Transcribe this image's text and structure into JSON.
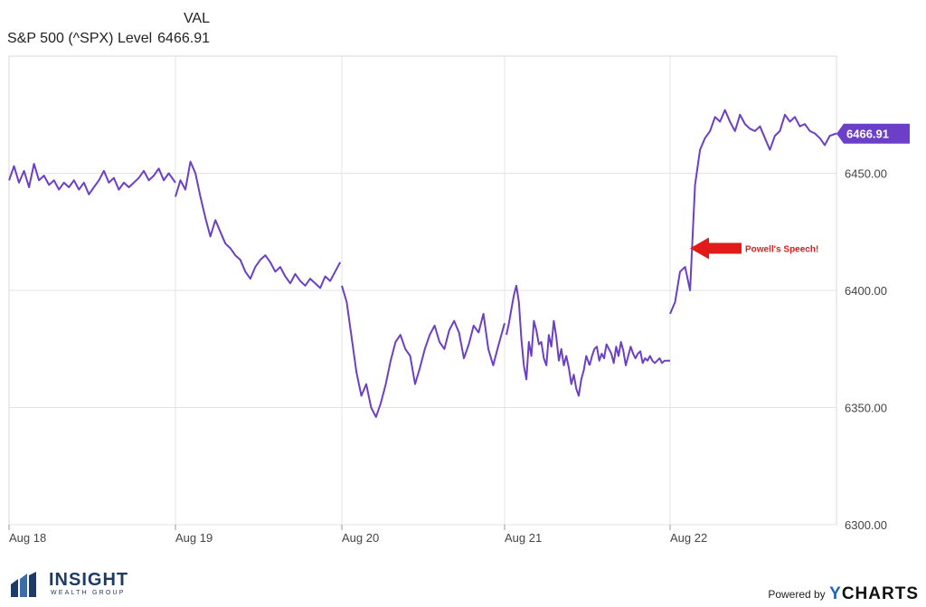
{
  "legend": {
    "header": "VAL",
    "series_name": "S&P 500 (^SPX) Level",
    "series_value": "6466.91"
  },
  "chart_data": {
    "type": "line",
    "title": "",
    "xlabel": "",
    "ylabel": "",
    "x_tick_labels": [
      "Aug 18",
      "Aug 19",
      "Aug 20",
      "Aug 21",
      "Aug 22"
    ],
    "y_ticks": [
      6300,
      6350,
      6400,
      6450
    ],
    "y_tick_labels": [
      "6300.00",
      "6350.00",
      "6400.00",
      "6450.00"
    ],
    "ylim": [
      6300,
      6500
    ],
    "grid": true,
    "series": [
      {
        "name": "S&P 500 (^SPX) Level",
        "color": "#6b3fc8",
        "last_value_label": "6466.91",
        "segments": [
          {
            "day": "Aug 18",
            "x": [
              0.0,
              0.03,
              0.06,
              0.09,
              0.12,
              0.15,
              0.18,
              0.21,
              0.24,
              0.27,
              0.3,
              0.33,
              0.36,
              0.39,
              0.42,
              0.45,
              0.48,
              0.51,
              0.54,
              0.57,
              0.6,
              0.63,
              0.66,
              0.69,
              0.72,
              0.75,
              0.78,
              0.81,
              0.84,
              0.87,
              0.9,
              0.93,
              0.96,
              1.0
            ],
            "y": [
              6447,
              6453,
              6446,
              6451,
              6444,
              6454,
              6447,
              6449,
              6445,
              6447,
              6443,
              6446,
              6444,
              6447,
              6443,
              6446,
              6441,
              6444,
              6447,
              6451,
              6446,
              6448,
              6443,
              6446,
              6444,
              6446,
              6448,
              6451,
              6447,
              6449,
              6452,
              6447,
              6450,
              6446
            ]
          },
          {
            "day": "Aug 19",
            "x": [
              0.0,
              0.03,
              0.06,
              0.09,
              0.12,
              0.15,
              0.18,
              0.21,
              0.24,
              0.27,
              0.3,
              0.33,
              0.36,
              0.39,
              0.42,
              0.45,
              0.48,
              0.51,
              0.54,
              0.57,
              0.6,
              0.63,
              0.66,
              0.69,
              0.72,
              0.75,
              0.78,
              0.81,
              0.84,
              0.87,
              0.9,
              0.93,
              0.96,
              0.99
            ],
            "y": [
              6440,
              6447,
              6443,
              6455,
              6450,
              6440,
              6431,
              6423,
              6430,
              6425,
              6420,
              6418,
              6415,
              6413,
              6408,
              6405,
              6410,
              6413,
              6415,
              6412,
              6408,
              6410,
              6406,
              6403,
              6407,
              6404,
              6402,
              6405,
              6403,
              6401,
              6406,
              6404,
              6408,
              6412
            ]
          },
          {
            "day": "Aug 20",
            "x": [
              0.0,
              0.03,
              0.06,
              0.09,
              0.12,
              0.15,
              0.18,
              0.21,
              0.24,
              0.27,
              0.3,
              0.33,
              0.36,
              0.39,
              0.42,
              0.45,
              0.48,
              0.51,
              0.54,
              0.57,
              0.6,
              0.63,
              0.66,
              0.69,
              0.72,
              0.75,
              0.78,
              0.81,
              0.84,
              0.87,
              0.9,
              0.93,
              0.96,
              1.0
            ],
            "y": [
              6402,
              6395,
              6380,
              6365,
              6355,
              6360,
              6350,
              6346,
              6352,
              6360,
              6370,
              6378,
              6381,
              6375,
              6372,
              6360,
              6367,
              6375,
              6381,
              6385,
              6378,
              6375,
              6383,
              6387,
              6382,
              6371,
              6377,
              6385,
              6382,
              6390,
              6375,
              6368,
              6376,
              6386
            ]
          },
          {
            "day": "Aug 21",
            "x": [
              0.0,
              0.03,
              0.06,
              0.09,
              0.12,
              0.15,
              0.18,
              0.21,
              0.24,
              0.27,
              0.3,
              0.33,
              0.36,
              0.39,
              0.42,
              0.45,
              0.48,
              0.51,
              0.54,
              0.57,
              0.6,
              0.63,
              0.66,
              0.69,
              0.72,
              0.75,
              0.78,
              0.81,
              0.84,
              0.87,
              0.9,
              0.93,
              0.96,
              1.0
            ],
            "y": [
              6381,
              6386,
              6392,
              6398,
              6402,
              6395,
              6379,
              6368,
              6362,
              6378,
              6372,
              6387,
              6383,
              6377,
              6378,
              6371,
              6368,
              6381,
              6376,
              6387,
              6380,
              6370,
              6375,
              6368,
              6372,
              6367,
              6360,
              6364,
              6358,
              6355,
              6362,
              6366,
              6372,
              6368
            ]
          },
          {
            "day": "Aug 21 b",
            "x": [
              0.0,
              0.03,
              0.06,
              0.09,
              0.12,
              0.15,
              0.18,
              0.21,
              0.24,
              0.27,
              0.3,
              0.33,
              0.36,
              0.39,
              0.42,
              0.45,
              0.48,
              0.51,
              0.54,
              0.57,
              0.6,
              0.63,
              0.66,
              0.69,
              0.72,
              0.75,
              0.78,
              0.81,
              0.84,
              0.87,
              0.9,
              0.93,
              0.96,
              1.0
            ],
            "y": [
              6368,
              6372,
              6375,
              6376,
              6370,
              6373,
              6371,
              6377,
              6375,
              6373,
              6369,
              6376,
              6372,
              6378,
              6374,
              6368,
              6372,
              6376,
              6373,
              6371,
              6373,
              6374,
              6369,
              6371,
              6370,
              6372,
              6370,
              6369,
              6370,
              6371,
              6369,
              6370,
              6370,
              6370
            ]
          },
          {
            "day": "Aug 22",
            "x": [
              0.0,
              0.03,
              0.06,
              0.09,
              0.12,
              0.15,
              0.18,
              0.21,
              0.24,
              0.27,
              0.3,
              0.33,
              0.36,
              0.39,
              0.42,
              0.45,
              0.48,
              0.51,
              0.54,
              0.57,
              0.6,
              0.63,
              0.66,
              0.69,
              0.72,
              0.75,
              0.78,
              0.81,
              0.84,
              0.87,
              0.9,
              0.93,
              0.96,
              1.0
            ],
            "y": [
              6390,
              6395,
              6408,
              6410,
              6400,
              6445,
              6460,
              6465,
              6468,
              6474,
              6472,
              6477,
              6472,
              6468,
              6475,
              6471,
              6469,
              6468,
              6470,
              6465,
              6460,
              6466,
              6468,
              6475,
              6472,
              6474,
              6470,
              6471,
              6468,
              6467,
              6465,
              6462,
              6466,
              6467
            ]
          }
        ]
      }
    ],
    "annotations": [
      {
        "text": "Powell's Speech!",
        "color": "#e21a1a",
        "y": 6411
      }
    ]
  },
  "footer": {
    "brand": "INSIGHT",
    "brand_sub": "WEALTH GROUP",
    "powered_by": "Powered by",
    "ycharts_y": "Y",
    "ycharts_rest": "CHARTS"
  }
}
